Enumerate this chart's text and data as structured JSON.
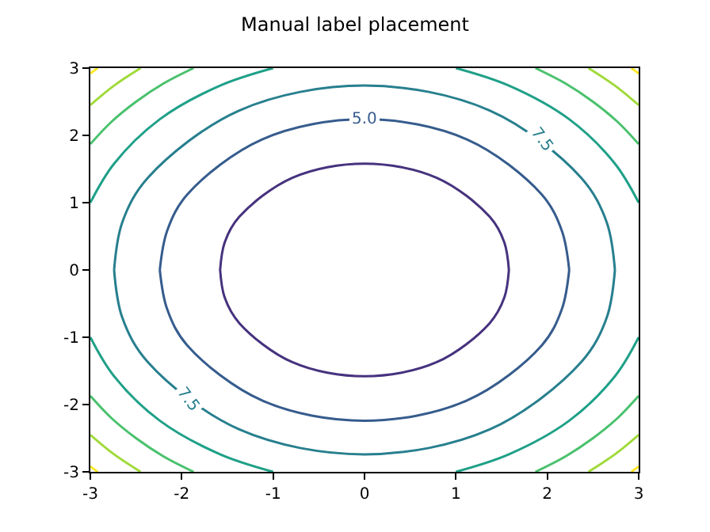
{
  "chart_data": {
    "type": "line",
    "title": "Manual label placement",
    "xlim": [
      -3,
      3
    ],
    "ylim": [
      -3,
      3
    ],
    "xticks": [
      -3,
      -2,
      -1,
      0,
      1,
      2,
      3
    ],
    "yticks": [
      -3,
      -2,
      -1,
      0,
      1,
      2,
      3
    ],
    "marker": "none",
    "line_style": "solid",
    "series": [
      {
        "color": "#46327e",
        "x": [
          -1.58,
          -1.53,
          -1.37,
          -0.79,
          0,
          0.79,
          1.37,
          1.53,
          1.58,
          null,
          -1.58,
          -1.53,
          -1.37,
          -0.79,
          0,
          0.79,
          1.37,
          1.53,
          1.58
        ],
        "values": [
          0,
          0.41,
          0.79,
          1.37,
          1.58,
          1.37,
          0.79,
          0.41,
          0,
          null,
          0,
          -0.41,
          -0.79,
          -1.37,
          -1.58,
          -1.37,
          -0.79,
          -0.41,
          0
        ]
      },
      {
        "color": "#365c8d",
        "x": [
          -2.24,
          -2.16,
          -1.94,
          -1.12,
          0,
          1.12,
          1.94,
          2.16,
          2.24,
          null,
          -2.24,
          -2.16,
          -1.94,
          -1.12,
          0,
          1.12,
          1.94,
          2.16,
          2.24
        ],
        "values": [
          0,
          0.58,
          1.12,
          1.94,
          2.24,
          1.94,
          1.12,
          0.58,
          0,
          null,
          0,
          -0.58,
          -1.12,
          -1.94,
          -2.24,
          -1.94,
          -1.12,
          -0.58,
          0
        ]
      },
      {
        "color": "#277f8e",
        "x": [
          -2.74,
          -2.65,
          -2.37,
          -1.37,
          0,
          1.37,
          2.37,
          2.65,
          2.74,
          null,
          -2.74,
          -2.65,
          -2.37,
          -1.37,
          0,
          1.37,
          2.37,
          2.65,
          2.74
        ],
        "values": [
          0,
          0.71,
          1.37,
          2.37,
          2.74,
          2.37,
          1.37,
          0.71,
          0,
          null,
          0,
          -0.71,
          -1.37,
          -2.37,
          -2.74,
          -2.37,
          -1.37,
          -0.71,
          0
        ]
      },
      {
        "color": "#1fa088",
        "x": [
          1,
          1.58,
          2.24,
          2.74,
          3,
          null,
          -1,
          -1.58,
          -2.24,
          -2.74,
          -3,
          null,
          -1,
          -1.58,
          -2.24,
          -2.74,
          -3,
          null,
          1,
          1.58,
          2.24,
          2.74,
          3
        ],
        "values": [
          3,
          2.74,
          2.24,
          1.58,
          1,
          null,
          3,
          2.74,
          2.24,
          1.58,
          1,
          null,
          -3,
          -2.74,
          -2.24,
          -1.58,
          -1,
          null,
          -3,
          -2.74,
          -2.24,
          -1.58,
          -1
        ]
      },
      {
        "color": "#4ac16d",
        "x": [
          1.87,
          2.2,
          2.5,
          2.77,
          3,
          null,
          -1.87,
          -2.2,
          -2.5,
          -2.77,
          -3,
          null,
          -1.87,
          -2.2,
          -2.5,
          -2.77,
          -3,
          null,
          1.87,
          2.2,
          2.5,
          2.77,
          3
        ],
        "values": [
          3,
          2.77,
          2.5,
          2.2,
          1.87,
          null,
          3,
          2.77,
          2.5,
          2.2,
          1.87,
          null,
          -3,
          -2.77,
          -2.5,
          -2.2,
          -1.87,
          null,
          -3,
          -2.77,
          -2.5,
          -2.2,
          -1.87
        ]
      },
      {
        "color": "#a0da39",
        "x": [
          2.45,
          2.74,
          3,
          null,
          -2.45,
          -2.74,
          -3,
          null,
          -2.45,
          -2.74,
          -3,
          null,
          2.45,
          2.74,
          3
        ],
        "values": [
          3,
          2.74,
          2.45,
          null,
          3,
          2.74,
          2.45,
          null,
          -3,
          -2.74,
          -2.45,
          null,
          -3,
          -2.74,
          -2.45
        ]
      },
      {
        "color": "#fde725",
        "x": [
          2.92,
          2.96,
          3,
          null,
          -2.92,
          -2.96,
          -3,
          null,
          -2.92,
          -2.96,
          -3,
          null,
          2.92,
          2.96,
          3
        ],
        "values": [
          3,
          2.96,
          2.92,
          null,
          3,
          2.96,
          2.92,
          null,
          -3,
          -2.96,
          -2.92,
          null,
          -3,
          -2.96,
          -2.92
        ]
      }
    ],
    "annotations": [
      {
        "text": "5.0",
        "x": 0,
        "y": 2.24
      },
      {
        "text": "7.5",
        "x": 1.94,
        "y": 1.94
      },
      {
        "text": "7.5",
        "x": -1.94,
        "y": -1.94
      }
    ]
  }
}
